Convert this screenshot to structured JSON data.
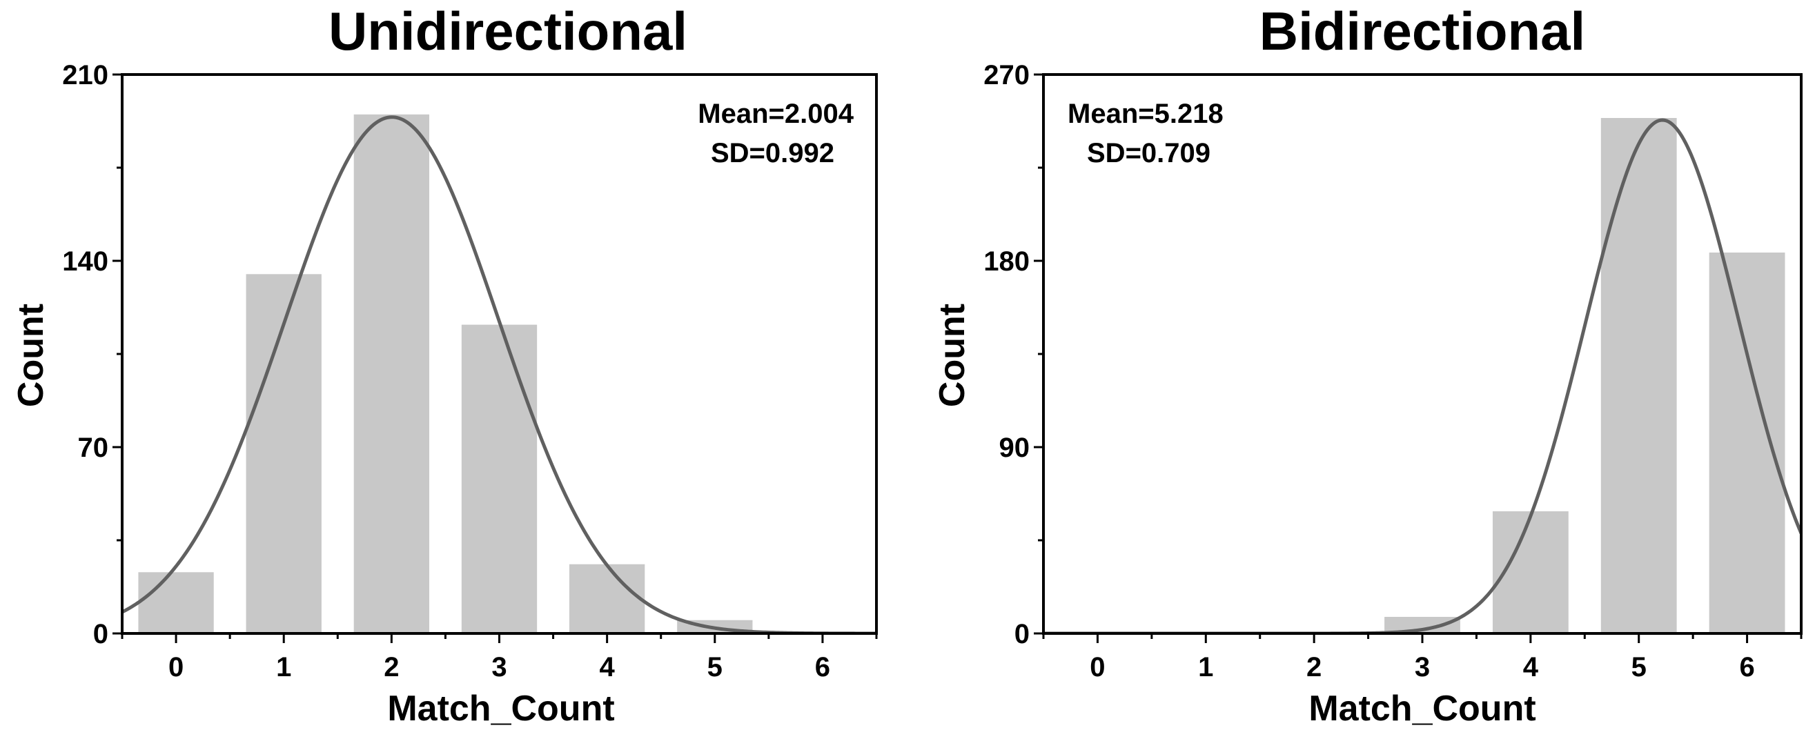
{
  "chart_data": [
    {
      "type": "bar",
      "title": "Unidirectional",
      "xlabel": "Match_Count",
      "ylabel": "Count",
      "x_ticks": [
        "0",
        "1",
        "2",
        "3",
        "4",
        "5",
        "6"
      ],
      "y_ticks": [
        "0",
        "70",
        "140",
        "210"
      ],
      "xlim": [
        -0.5,
        6.5
      ],
      "ylim": [
        0,
        210
      ],
      "categories": [
        0,
        1,
        2,
        3,
        4,
        5,
        6
      ],
      "values": [
        23,
        135,
        195,
        116,
        26,
        5,
        0
      ],
      "fit_curve": {
        "type": "normal",
        "mean": 2.004,
        "sd": 0.992,
        "peak": 194
      },
      "mean_text": "Mean=2.004",
      "sd_text": "SD=0.992",
      "stats_position": "top-right"
    },
    {
      "type": "bar",
      "title": "Bidirectional",
      "xlabel": "Match_Count",
      "ylabel": "Count",
      "x_ticks": [
        "0",
        "1",
        "2",
        "3",
        "4",
        "5",
        "6"
      ],
      "y_ticks": [
        "0",
        "90",
        "180",
        "270"
      ],
      "xlim": [
        -0.5,
        6.5
      ],
      "ylim": [
        0,
        270
      ],
      "categories": [
        0,
        1,
        2,
        3,
        4,
        5,
        6
      ],
      "values": [
        0,
        0,
        0,
        8,
        59,
        249,
        184
      ],
      "fit_curve": {
        "type": "normal",
        "mean": 5.218,
        "sd": 0.709,
        "peak": 248
      },
      "mean_text": "Mean=5.218",
      "sd_text": "SD=0.709",
      "stats_position": "top-left"
    }
  ]
}
